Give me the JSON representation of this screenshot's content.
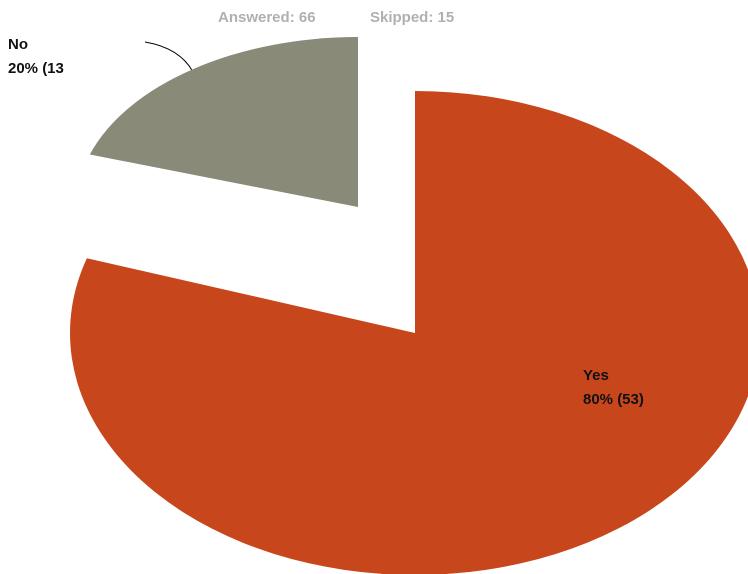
{
  "chart_data": {
    "type": "pie",
    "subtitle": [
      "Answered: 66",
      "Skipped: 15"
    ],
    "categories": [
      "Yes",
      "No"
    ],
    "values": [
      80,
      20
    ],
    "value_labels": [
      "80% (53)",
      "20% (13"
    ],
    "colors": [
      "#c8461c",
      "#8a8a78"
    ]
  }
}
